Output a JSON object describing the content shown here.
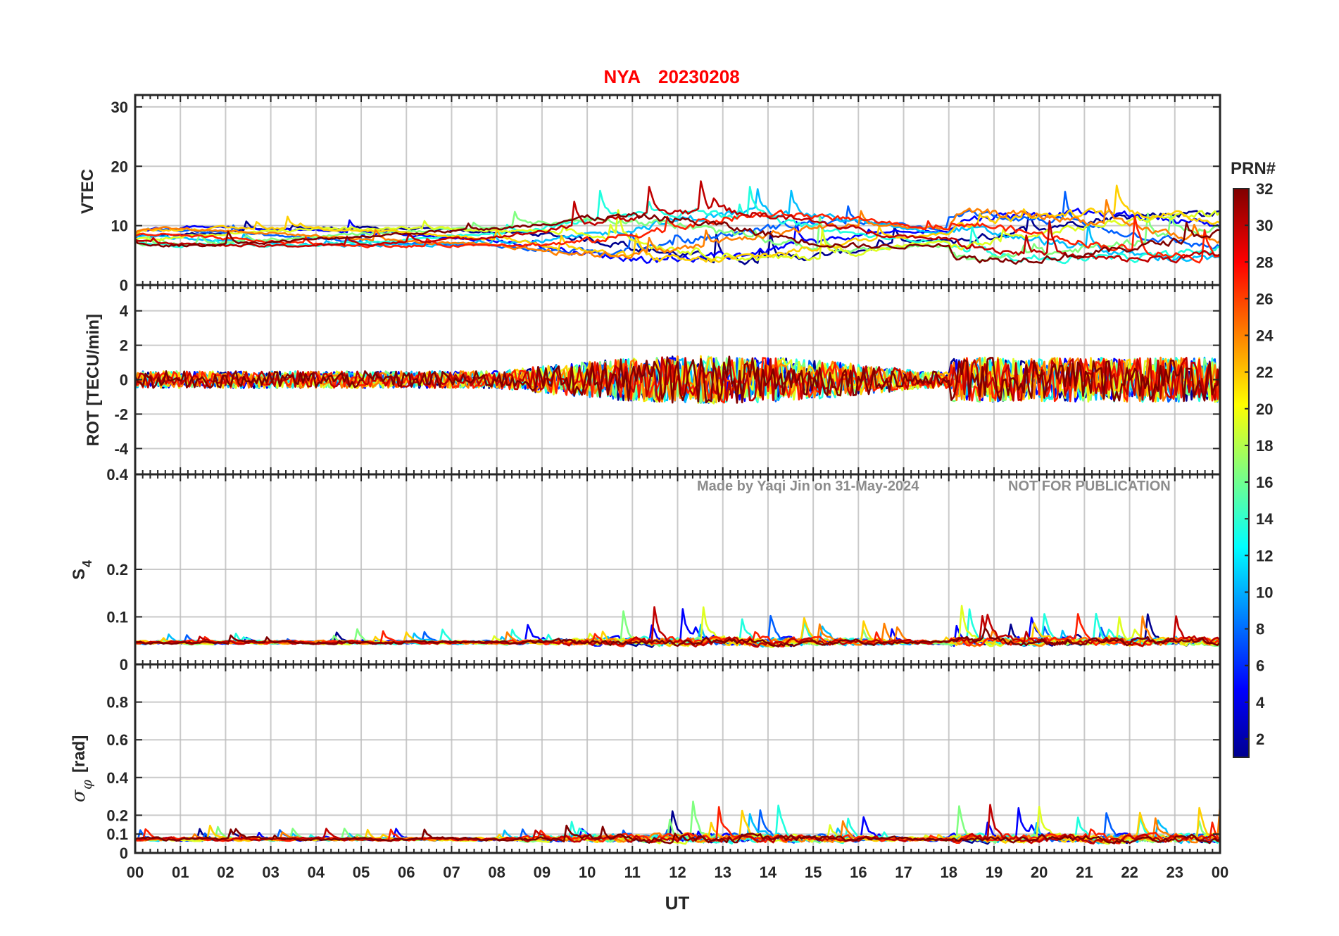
{
  "figure": {
    "station": "NYA",
    "date": "20230208",
    "watermark_author": "Made by Yaqi Jin on 31-May-2024",
    "watermark_notice": "NOT FOR PUBLICATION",
    "xlabel": "UT"
  },
  "chart_data": [
    {
      "type": "line",
      "panel": "VTEC",
      "ylabel": "VTEC",
      "xlim": [
        0,
        24
      ],
      "ylim": [
        0,
        32
      ],
      "yticks": [
        0,
        10,
        20,
        30
      ],
      "baseline": 8,
      "grid": true
    },
    {
      "type": "line",
      "panel": "ROT",
      "ylabel": "ROT [TECU/min]",
      "xlim": [
        0,
        24
      ],
      "ylim": [
        -5.5,
        5.5
      ],
      "yticks": [
        -4,
        -2,
        0,
        2,
        4
      ],
      "baseline": 0,
      "grid": true
    },
    {
      "type": "line",
      "panel": "S4",
      "ylabel_main": "S",
      "ylabel_sub": "4",
      "xlim": [
        0,
        24
      ],
      "ylim": [
        0,
        0.4
      ],
      "yticks": [
        0,
        0.1,
        0.2,
        0.4
      ],
      "baseline": 0.045,
      "grid": true
    },
    {
      "type": "line",
      "panel": "SIGMA_PHI",
      "ylabel_sym": "σ",
      "ylabel_sub": "φ",
      "ylabel_unit": "[rad]",
      "xlim": [
        0,
        24
      ],
      "ylim": [
        0,
        1.0
      ],
      "yticks": [
        0,
        0.1,
        0.2,
        0.4,
        0.6,
        0.8
      ],
      "baseline": 0.07,
      "grid": true
    }
  ],
  "x_axis": {
    "ticks": [
      0,
      1,
      2,
      3,
      4,
      5,
      6,
      7,
      8,
      9,
      10,
      11,
      12,
      13,
      14,
      15,
      16,
      17,
      18,
      19,
      20,
      21,
      22,
      23,
      24
    ],
    "tick_labels": [
      "00",
      "01",
      "02",
      "03",
      "04",
      "05",
      "06",
      "07",
      "08",
      "09",
      "10",
      "11",
      "12",
      "13",
      "14",
      "15",
      "16",
      "17",
      "18",
      "19",
      "20",
      "21",
      "22",
      "23",
      "00"
    ]
  },
  "colorbar": {
    "title": "PRN#",
    "colormap": "jet",
    "range": [
      1,
      32
    ],
    "ticks": [
      2,
      4,
      6,
      8,
      10,
      12,
      14,
      16,
      18,
      20,
      22,
      24,
      26,
      28,
      30,
      32
    ]
  },
  "series_colors": [
    "#00008f",
    "#0000ff",
    "#0060ff",
    "#00bfff",
    "#20ffdf",
    "#80ff80",
    "#dfff20",
    "#ffd000",
    "#ff8000",
    "#ff2000",
    "#c00000",
    "#800000"
  ]
}
